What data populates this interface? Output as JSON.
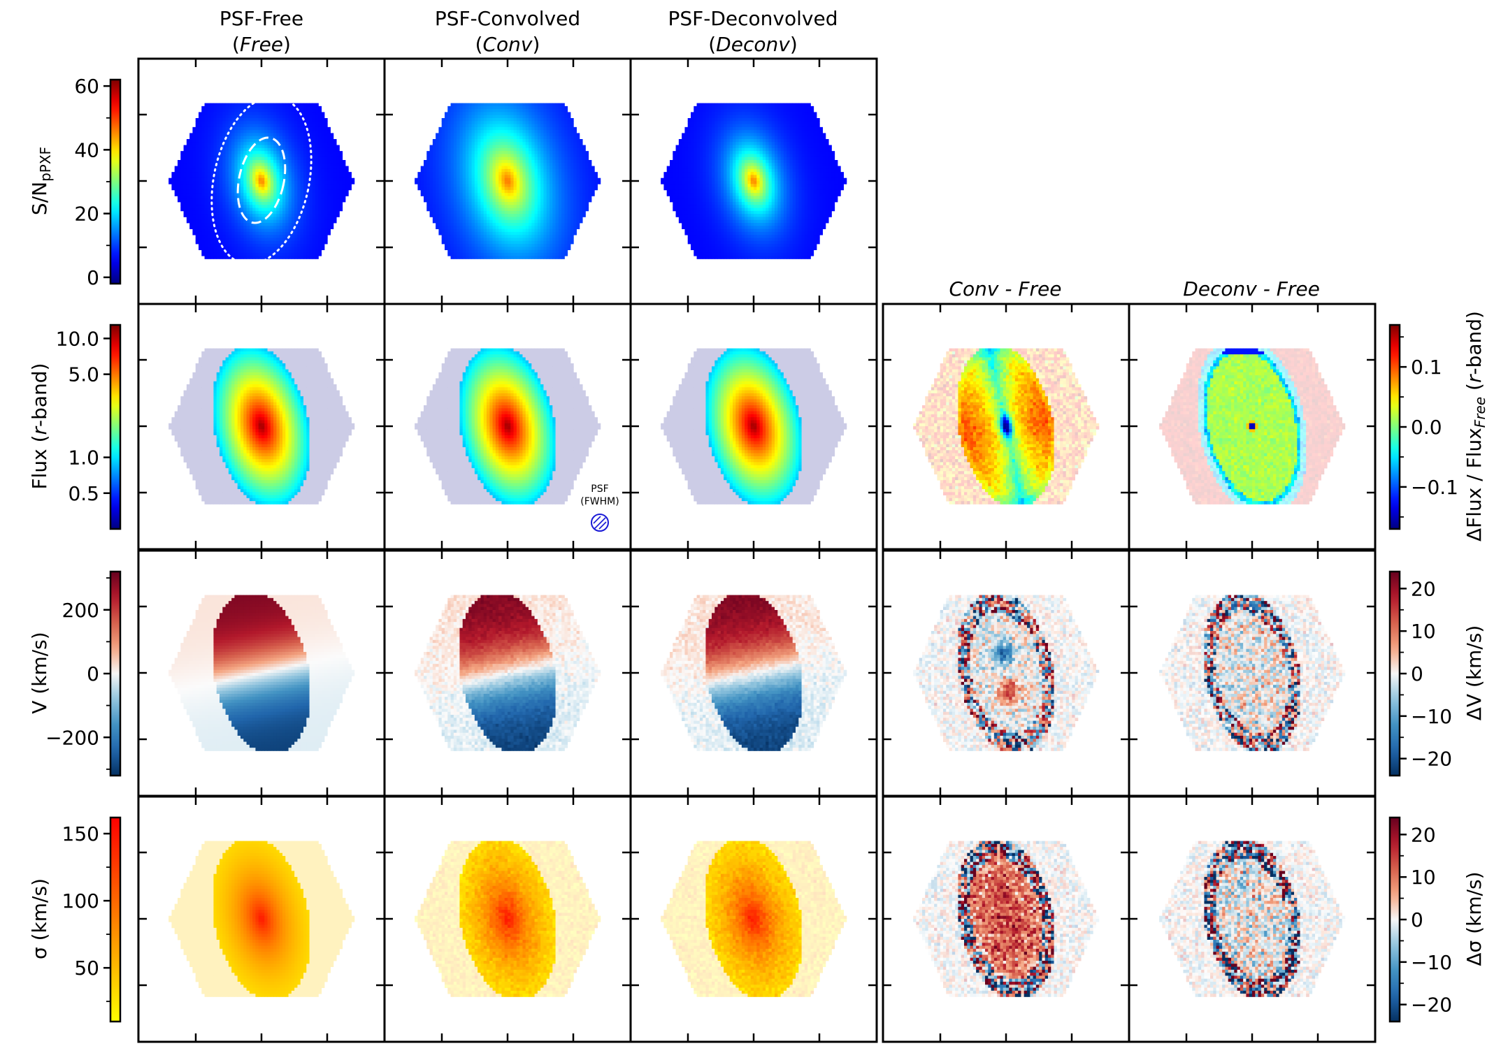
{
  "colors": {
    "cmap_jet": [
      "#00007f",
      "#0000ff",
      "#007fff",
      "#00ffff",
      "#7fff7f",
      "#ffff00",
      "#ff7f00",
      "#ff0000",
      "#7f0000"
    ],
    "cmap_rdbu": [
      "#053061",
      "#2166ac",
      "#4393c3",
      "#92c5de",
      "#f7f7f7",
      "#f4a582",
      "#d6604d",
      "#b2182b",
      "#67001f"
    ],
    "cmap_autumn": [
      "#ffff00",
      "#ffbf00",
      "#ff7f00",
      "#ff3f00",
      "#ff0000"
    ],
    "annotation": "#1a1ad6",
    "frame": "#000000"
  },
  "chart_data": {
    "type": "heatmap",
    "description_columns": [
      {
        "title": "PSF-Free",
        "subtitle_pre": "(",
        "subtitle_italic": "Free",
        "subtitle_post": ")"
      },
      {
        "title": "PSF-Convolved",
        "subtitle_pre": "(",
        "subtitle_italic": "Conv",
        "subtitle_post": ")"
      },
      {
        "title": "PSF-Deconvolved",
        "subtitle_pre": "(",
        "subtitle_italic": "Deconv",
        "subtitle_post": ")"
      }
    ],
    "difference_columns": [
      "Conv - Free",
      "Deconv - Free"
    ],
    "rows": [
      {
        "key": "sn",
        "ylabel_main": "S/N",
        "ylabel_sub": "pPXF",
        "colorbar": {
          "cmap": "jet",
          "min": -2,
          "max": 62,
          "ticks": [
            0,
            20,
            40,
            60
          ],
          "tick_labels": [
            "0",
            "20",
            "40",
            "60"
          ]
        },
        "diff_colorbar": null
      },
      {
        "key": "flux",
        "ylabel_pre": "Flux (",
        "ylabel_italic": "r",
        "ylabel_post": "-band)",
        "colorbar": {
          "cmap": "jet",
          "scale": "log",
          "min": 0.25,
          "max": 13,
          "ticks": [
            0.5,
            1.0,
            5.0,
            10.0
          ],
          "tick_labels": [
            "0.5",
            "1.0",
            "5.0",
            "10.0"
          ]
        },
        "diff_colorbar": {
          "cmap": "jet",
          "min": -0.17,
          "max": 0.17,
          "ticks": [
            -0.1,
            0.0,
            0.1
          ],
          "tick_labels": [
            "−0.1",
            "0.0",
            "0.1"
          ],
          "label_pre": "ΔFlux / Flux",
          "label_sub": "Free",
          "label_mid": " (",
          "label_italic": "r",
          "label_post": "-band)"
        }
      },
      {
        "key": "vel",
        "ylabel_main": "V (km/s)",
        "colorbar": {
          "cmap": "rdbu",
          "min": -320,
          "max": 320,
          "ticks": [
            -200,
            0,
            200
          ],
          "tick_labels": [
            "−200",
            "0",
            "200"
          ]
        },
        "diff_colorbar": {
          "cmap": "rdbu",
          "min": -24,
          "max": 24,
          "ticks": [
            -20,
            -10,
            0,
            10,
            20
          ],
          "tick_labels": [
            "−20",
            "−10",
            "0",
            "10",
            "20"
          ],
          "label_main": "ΔV (km/s)"
        }
      },
      {
        "key": "sigma",
        "ylabel_main": "σ (km/s)",
        "colorbar": {
          "cmap": "autumn",
          "min": 10,
          "max": 162,
          "ticks": [
            50,
            100,
            150
          ],
          "tick_labels": [
            "50",
            "100",
            "150"
          ]
        },
        "diff_colorbar": {
          "cmap": "rdbu",
          "min": -24,
          "max": 24,
          "ticks": [
            -20,
            -10,
            0,
            10,
            20
          ],
          "tick_labels": [
            "−20",
            "−10",
            "0",
            "10",
            "20"
          ],
          "label_main": "Δσ (km/s)"
        }
      }
    ],
    "psf_annotation": {
      "line1": "PSF",
      "line2": "(FWHM)"
    },
    "model": {
      "sn_peak": 47,
      "sn_floor": 6,
      "flux_peak": 12,
      "flux_edge": 0.45,
      "v_max": 300,
      "sigma_center": 130,
      "sigma_edge": 25
    }
  }
}
